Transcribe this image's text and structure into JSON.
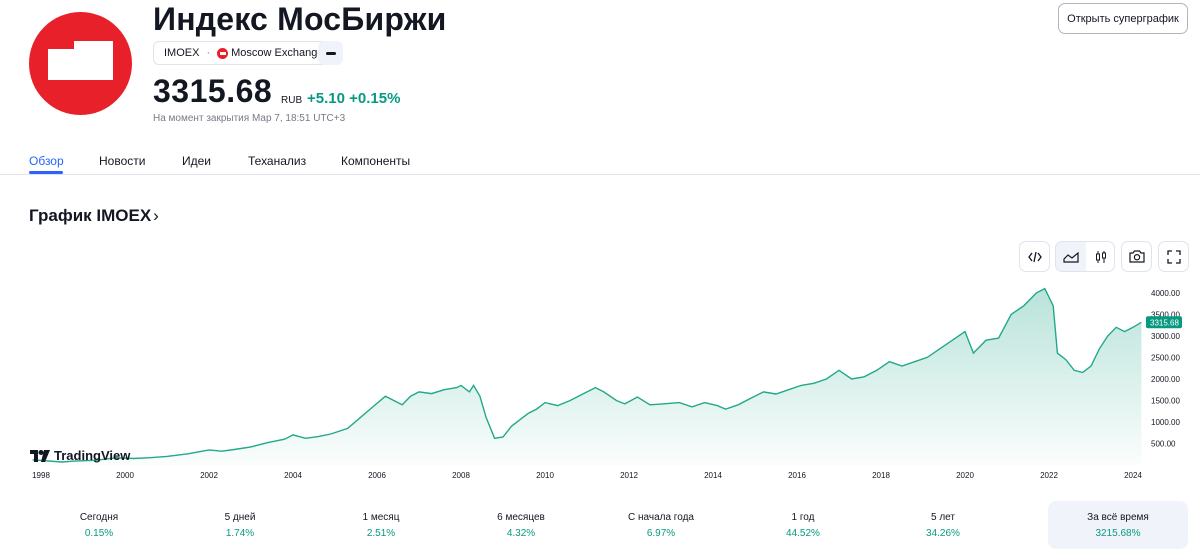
{
  "header": {
    "title": "Индекс МосБиржи",
    "ticker": "IMOEX",
    "exchange": "Moscow Exchange",
    "price": "3315.68",
    "currency": "RUB",
    "change": "+5.10",
    "change_pct": "+0.15%",
    "note": "На момент закрытия Мар 7, 18:51 UTC+3",
    "open_chart_label": "Открыть суперграфик"
  },
  "tabs": [
    "Обзор",
    "Новости",
    "Идеи",
    "Теханализ",
    "Компоненты"
  ],
  "active_tab": "Обзор",
  "section_title": "График IMOEX",
  "section_arrow": "›",
  "branding": "TradingView",
  "toolbar": {
    "icons": [
      "embed-icon",
      "area-chart-icon",
      "candles-icon",
      "camera-icon",
      "fullscreen-icon"
    ]
  },
  "colors": {
    "accent": "#2962ff",
    "positive": "#089981",
    "line": "#22a88a",
    "logo": "#e8202a"
  },
  "chart_data": {
    "type": "area",
    "x": [
      1997.8,
      1998.5,
      1998.8,
      1999.3,
      1999.8,
      2000.2,
      2000.6,
      2001.0,
      2001.5,
      2002.0,
      2002.3,
      2002.6,
      2003.0,
      2003.4,
      2003.8,
      2004.0,
      2004.3,
      2004.6,
      2004.9,
      2005.3,
      2005.6,
      2005.9,
      2006.2,
      2006.4,
      2006.6,
      2006.8,
      2007.0,
      2007.3,
      2007.6,
      2007.9,
      2008.0,
      2008.2,
      2008.3,
      2008.45,
      2008.6,
      2008.8,
      2009.0,
      2009.2,
      2009.4,
      2009.6,
      2009.8,
      2010.0,
      2010.3,
      2010.6,
      2010.9,
      2011.2,
      2011.4,
      2011.7,
      2011.9,
      2012.2,
      2012.5,
      2012.8,
      2013.2,
      2013.5,
      2013.8,
      2014.1,
      2014.3,
      2014.6,
      2014.9,
      2015.2,
      2015.5,
      2015.8,
      2016.1,
      2016.4,
      2016.7,
      2017.0,
      2017.3,
      2017.6,
      2017.9,
      2018.2,
      2018.5,
      2018.8,
      2019.1,
      2019.4,
      2019.7,
      2020.0,
      2020.2,
      2020.5,
      2020.8,
      2021.1,
      2021.4,
      2021.7,
      2021.9,
      2022.1,
      2022.2,
      2022.4,
      2022.6,
      2022.8,
      2023.0,
      2023.2,
      2023.4,
      2023.6,
      2023.8,
      2024.0,
      2024.2
    ],
    "values": [
      120,
      70,
      90,
      110,
      170,
      150,
      170,
      200,
      260,
      350,
      320,
      360,
      420,
      520,
      600,
      700,
      620,
      660,
      720,
      850,
      1100,
      1350,
      1600,
      1500,
      1400,
      1600,
      1700,
      1660,
      1750,
      1800,
      1850,
      1700,
      1850,
      1600,
      1100,
      620,
      650,
      900,
      1050,
      1200,
      1300,
      1450,
      1380,
      1500,
      1650,
      1800,
      1700,
      1500,
      1420,
      1580,
      1400,
      1420,
      1450,
      1350,
      1450,
      1380,
      1300,
      1400,
      1550,
      1700,
      1650,
      1750,
      1850,
      1900,
      2000,
      2200,
      2000,
      2050,
      2200,
      2400,
      2300,
      2400,
      2500,
      2700,
      2900,
      3100,
      2600,
      2900,
      2950,
      3500,
      3700,
      4000,
      4100,
      3700,
      2600,
      2450,
      2200,
      2150,
      2300,
      2700,
      3000,
      3200,
      3100,
      3200,
      3315.68
    ],
    "last_label": "3315.68",
    "x_ticks": [
      "1998",
      "2000",
      "2002",
      "2004",
      "2006",
      "2008",
      "2010",
      "2012",
      "2014",
      "2016",
      "2018",
      "2020",
      "2022",
      "2024"
    ],
    "y_ticks": [
      "500.00",
      "1000.00",
      "1500.00",
      "2000.00",
      "2500.00",
      "3000.00",
      "3500.00",
      "4000.00"
    ],
    "ylim": [
      0,
      4300
    ],
    "grid": false
  },
  "performance": [
    {
      "label": "Сегодня",
      "value": "0.15%"
    },
    {
      "label": "5 дней",
      "value": "1.74%"
    },
    {
      "label": "1 месяц",
      "value": "2.51%"
    },
    {
      "label": "6 месяцев",
      "value": "4.32%"
    },
    {
      "label": "С начала года",
      "value": "6.97%"
    },
    {
      "label": "1 год",
      "value": "44.52%"
    },
    {
      "label": "5 лет",
      "value": "34.26%"
    },
    {
      "label": "За всё время",
      "value": "3215.68%"
    }
  ],
  "performance_active": 7
}
